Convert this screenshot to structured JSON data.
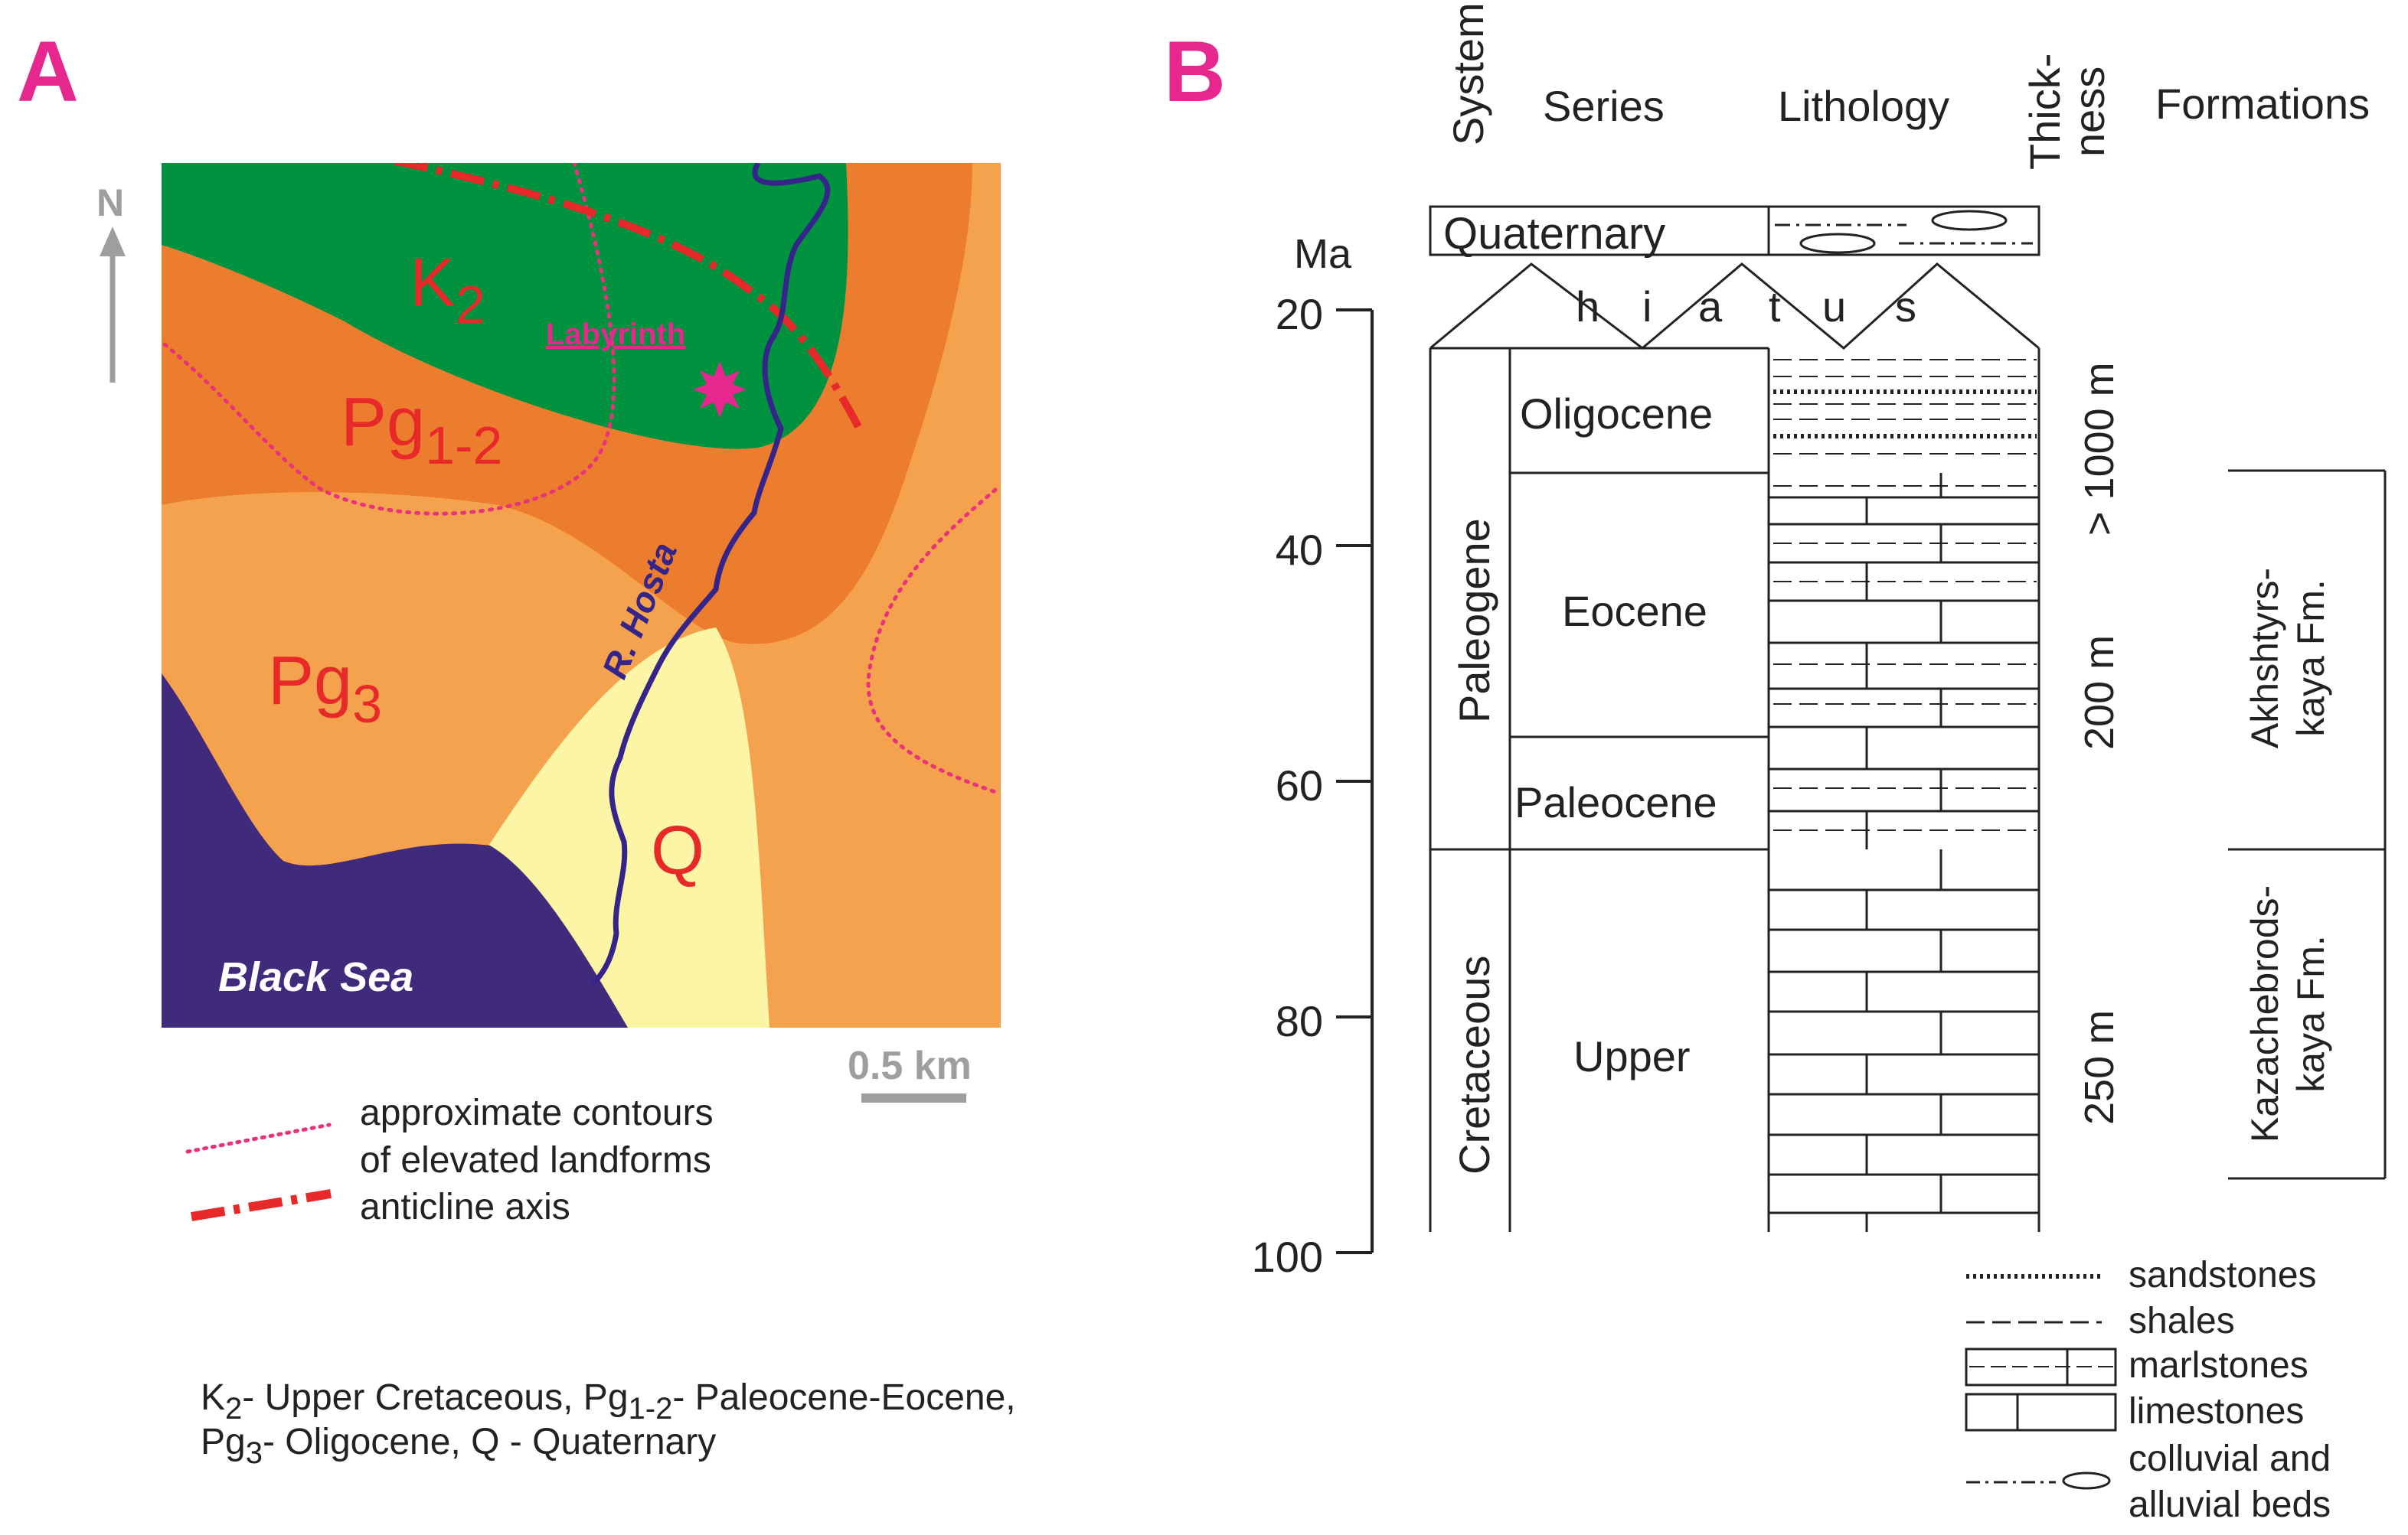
{
  "panels": {
    "a": {
      "label": "A",
      "north": "N",
      "units": {
        "k2": {
          "base": "K",
          "sub": "2"
        },
        "pg12": {
          "base": "Pg",
          "sub": "1-2"
        },
        "pg3": {
          "base": "Pg",
          "sub": "3"
        },
        "q": "Q"
      },
      "place_labyrinth": "Labyrinth",
      "river": "R. Hosta",
      "sea": "Black Sea",
      "scale": "0.5 km",
      "legend": {
        "contours_line1": "approximate contours",
        "contours_line2": "of elevated landforms",
        "anticline": "anticline axis"
      },
      "caption": {
        "line1": {
          "k": "K",
          "k_sub": "2",
          "k_text": "- Upper Cretaceous, ",
          "pg": "Pg",
          "pg_sub": "1-2",
          "pg_text": "- Paleocene-Eocene,"
        },
        "line2": {
          "pg": "Pg",
          "pg_sub": "3",
          "pg_text": "- Oligocene, Q - Quaternary"
        }
      }
    },
    "b": {
      "label": "B",
      "headers": {
        "system": "System",
        "series": "Series",
        "lithology": "Lithology",
        "thickness_1": "Thick-",
        "thickness_2": "ness",
        "formations": "Formations"
      },
      "axis_unit": "Ma",
      "ticks": [
        "20",
        "40",
        "60",
        "80",
        "100"
      ],
      "quaternary": "Quaternary",
      "hiatus": [
        "h",
        "i",
        "a",
        "t",
        "u",
        "s"
      ],
      "systems": {
        "paleogene": "Paleogene",
        "cretaceous": "Cretaceous"
      },
      "series": {
        "oligocene": "Oligocene",
        "eocene": "Eocene",
        "paleocene": "Paleocene",
        "upper": "Upper"
      },
      "thickness": {
        "t1": "> 1000 m",
        "t2": "200 m",
        "t3": "250 m"
      },
      "formations": {
        "akh_1": "Akhshtyrs-",
        "akh_2": "kaya Fm.",
        "kaz_1": "Kazachebrods-",
        "kaz_2": "kaya Fm."
      },
      "legend": {
        "sandstones": "sandstones",
        "shales": "shales",
        "marlstones": "marlstones",
        "limestones": "limestones",
        "colluvial_1": "colluvial and",
        "colluvial_2": "alluvial beds"
      }
    }
  },
  "colors": {
    "panel_label": "#e6288e",
    "k2": "#00923f",
    "pg12": "#ec7d2f",
    "pg3": "#f5a24f",
    "q": "#fdf5a6",
    "sea": "#3f2a7c",
    "river": "#35258a",
    "unit_text": "#e8292a",
    "anticline": "#e8292a",
    "contour": "#e8337a",
    "labyrinth": "#e6288e",
    "grey": "#9e9e9e"
  }
}
